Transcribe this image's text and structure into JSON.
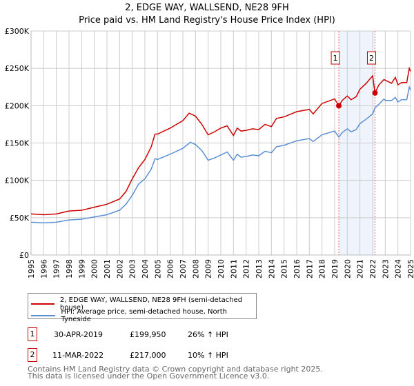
{
  "chart_data": {
    "type": "line",
    "title": "2, EDGE WAY, WALLSEND, NE28 9FH",
    "subtitle": "Price paid vs. HM Land Registry's House Price Index (HPI)",
    "xlim": [
      1995,
      2025
    ],
    "ylim": [
      0,
      300000
    ],
    "yticks": [
      {
        "v": 0,
        "label": "£0"
      },
      {
        "v": 50000,
        "label": "£50K"
      },
      {
        "v": 100000,
        "label": "£100K"
      },
      {
        "v": 150000,
        "label": "£150K"
      },
      {
        "v": 200000,
        "label": "£200K"
      },
      {
        "v": 250000,
        "label": "£250K"
      },
      {
        "v": 300000,
        "label": "£300K"
      }
    ],
    "xticks": [
      "1995",
      "1996",
      "1997",
      "1998",
      "1999",
      "2000",
      "2001",
      "2002",
      "2003",
      "2004",
      "2005",
      "2006",
      "2007",
      "2008",
      "2009",
      "2010",
      "2011",
      "2012",
      "2013",
      "2014",
      "2015",
      "2016",
      "2017",
      "2018",
      "2019",
      "2020",
      "2021",
      "2022",
      "2023",
      "2024",
      "2025"
    ],
    "grid": true,
    "shaded_range": [
      2019.33,
      2022.19
    ],
    "series": [
      {
        "name": "2, EDGE WAY, WALLSEND, NE28 9FH (semi-detached house)",
        "color": "#cc0000",
        "x": [
          1995,
          1996,
          1997,
          1998,
          1999,
          2000,
          2001,
          2002,
          2002.5,
          2003,
          2003.5,
          2004,
          2004.5,
          2004.8,
          2005,
          2006,
          2007,
          2007.5,
          2008,
          2008.5,
          2009,
          2009.5,
          2010,
          2010.5,
          2011,
          2011.3,
          2011.6,
          2012,
          2012.5,
          2013,
          2013.5,
          2014,
          2014.4,
          2015,
          2016,
          2017,
          2017.3,
          2018,
          2019,
          2019.33,
          2019.6,
          2020,
          2020.3,
          2020.7,
          2021,
          2021.5,
          2022,
          2022.19,
          2022.5,
          2022.9,
          2023.5,
          2023.8,
          2024,
          2024.3,
          2024.7,
          2024.9,
          2025
        ],
        "y": [
          55,
          54,
          55,
          59,
          60,
          64,
          68,
          75,
          85,
          102,
          117,
          128,
          145,
          162,
          162,
          170,
          180,
          190,
          186,
          175,
          161,
          165,
          170,
          173,
          160,
          170,
          166,
          167,
          169,
          168,
          175,
          172,
          183,
          185,
          192,
          195,
          189,
          203,
          209,
          199.95,
          207,
          213,
          208,
          212,
          222,
          230,
          240,
          217,
          228,
          235,
          230,
          238,
          228,
          231,
          231,
          250,
          246
        ]
      },
      {
        "name": "HPI: Average price, semi-detached house, North Tyneside",
        "color": "#5b8fd4",
        "x": [
          1995,
          1996,
          1997,
          1998,
          1999,
          2000,
          2001,
          2002,
          2002.5,
          2003,
          2003.5,
          2004,
          2004.5,
          2004.8,
          2005,
          2006,
          2007,
          2007.6,
          2008,
          2008.5,
          2009,
          2009.5,
          2010,
          2010.5,
          2011,
          2011.3,
          2011.6,
          2012,
          2012.5,
          2013,
          2013.5,
          2014,
          2014.4,
          2015,
          2016,
          2017,
          2017.3,
          2018,
          2019,
          2019.33,
          2019.6,
          2020,
          2020.3,
          2020.7,
          2021,
          2021.5,
          2022,
          2022.19,
          2022.5,
          2022.9,
          2023,
          2023.5,
          2023.8,
          2024,
          2024.3,
          2024.7,
          2024.9,
          2025
        ],
        "y": [
          44,
          43,
          44,
          47,
          48,
          51,
          54,
          60,
          68,
          80,
          95,
          102,
          115,
          129,
          128,
          135,
          143,
          151,
          148,
          140,
          127,
          130,
          134,
          138,
          127,
          135,
          131,
          132,
          134,
          133,
          139,
          137,
          145,
          147,
          153,
          156,
          152,
          161,
          166,
          158,
          164,
          169,
          165,
          168,
          176,
          182,
          189,
          197,
          202,
          209,
          207,
          207,
          211,
          205,
          208,
          208,
          225,
          221
        ]
      }
    ],
    "y_units": "thousands GBP",
    "annotations": [
      {
        "label": "1",
        "x": 2019.33,
        "y": 199950
      },
      {
        "label": "2",
        "x": 2022.19,
        "y": 217000
      }
    ],
    "legend_position": "bottom"
  },
  "transactions": [
    {
      "num": "1",
      "date": "30-APR-2019",
      "price": "£199,950",
      "hpi": "26% ↑ HPI"
    },
    {
      "num": "2",
      "date": "11-MAR-2022",
      "price": "£217,000",
      "hpi": "10% ↑ HPI"
    }
  ],
  "footer": [
    "Contains HM Land Registry data © Crown copyright and database right 2025.",
    "This data is licensed under the Open Government Licence v3.0."
  ]
}
